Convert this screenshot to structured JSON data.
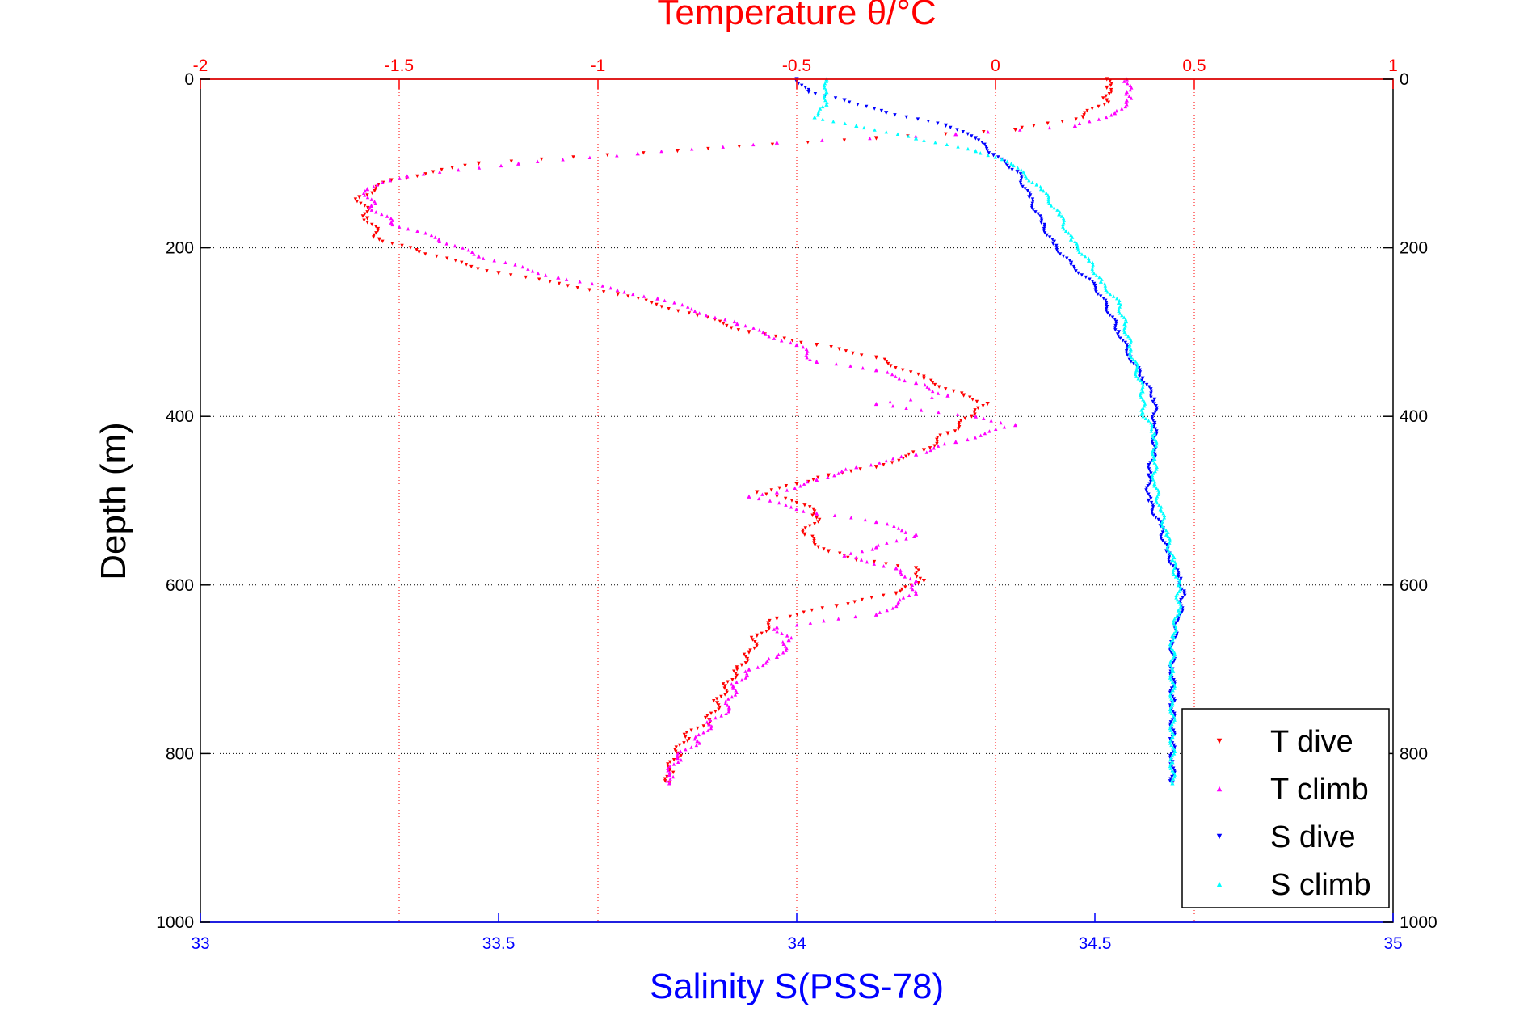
{
  "chart_data": {
    "type": "scatter",
    "title": "Temperature θ/°C",
    "xlabel": "Salinity S(PSS-78)",
    "ylabel": "Depth (m)",
    "grid": true,
    "legend_position": "bottom-right",
    "x_bottom": {
      "label": "Salinity S(PSS-78)",
      "range": [
        33,
        35
      ],
      "ticks": [
        33,
        33.5,
        34,
        34.5,
        35
      ],
      "tick_labels": [
        "33",
        "33.5",
        "34",
        "34.5",
        "35"
      ],
      "color": "#0000ff"
    },
    "x_top": {
      "label": "Temperature θ/°C",
      "range": [
        -2,
        1
      ],
      "ticks": [
        -2,
        -1.5,
        -1,
        -0.5,
        0,
        0.5,
        1
      ],
      "tick_labels": [
        "-2",
        "-1.5",
        "-1",
        "-0.5",
        "0",
        "0.5",
        "1"
      ],
      "color": "#ff0000"
    },
    "y": {
      "label": "Depth (m)",
      "range": [
        0,
        1000
      ],
      "reversed": true,
      "ticks": [
        0,
        200,
        400,
        600,
        800,
        1000
      ],
      "tick_labels": [
        "0",
        "200",
        "400",
        "600",
        "800",
        "1000"
      ]
    },
    "series": [
      {
        "name": "T dive",
        "axis": "top",
        "color": "#ff0000",
        "marker": "triangle-down",
        "points": [
          [
            0.28,
            0
          ],
          [
            0.28,
            10
          ],
          [
            0.28,
            25
          ],
          [
            0.22,
            45
          ],
          [
            0.05,
            60
          ],
          [
            -0.3,
            70
          ],
          [
            -0.8,
            85
          ],
          [
            -1.3,
            100
          ],
          [
            -1.52,
            120
          ],
          [
            -1.6,
            140
          ],
          [
            -1.58,
            165
          ],
          [
            -1.55,
            190
          ],
          [
            -1.45,
            205
          ],
          [
            -1.25,
            230
          ],
          [
            -0.95,
            255
          ],
          [
            -0.75,
            280
          ],
          [
            -0.62,
            300
          ],
          [
            -0.45,
            315
          ],
          [
            -0.3,
            330
          ],
          [
            -0.18,
            355
          ],
          [
            -0.08,
            375
          ],
          [
            -0.02,
            385
          ],
          [
            -0.06,
            400
          ],
          [
            -0.12,
            420
          ],
          [
            -0.18,
            440
          ],
          [
            -0.3,
            460
          ],
          [
            -0.42,
            470
          ],
          [
            -0.5,
            480
          ],
          [
            -0.6,
            490
          ],
          [
            -0.48,
            505
          ],
          [
            -0.45,
            520
          ],
          [
            -0.48,
            540
          ],
          [
            -0.42,
            560
          ],
          [
            -0.35,
            570
          ],
          [
            -0.2,
            580
          ],
          [
            -0.18,
            595
          ],
          [
            -0.25,
            610
          ],
          [
            -0.4,
            625
          ],
          [
            -0.55,
            640
          ],
          [
            -0.6,
            660
          ],
          [
            -0.62,
            680
          ],
          [
            -0.65,
            700
          ],
          [
            -0.68,
            720
          ],
          [
            -0.7,
            740
          ],
          [
            -0.72,
            760
          ],
          [
            -0.78,
            780
          ],
          [
            -0.8,
            800
          ],
          [
            -0.82,
            820
          ],
          [
            -0.82,
            835
          ]
        ]
      },
      {
        "name": "T climb",
        "axis": "top",
        "color": "#ff00ff",
        "marker": "triangle-up",
        "points": [
          [
            0.33,
            0
          ],
          [
            0.33,
            15
          ],
          [
            0.33,
            25
          ],
          [
            0.3,
            40
          ],
          [
            0.2,
            55
          ],
          [
            -0.1,
            65
          ],
          [
            -0.55,
            75
          ],
          [
            -0.9,
            88
          ],
          [
            -1.2,
            100
          ],
          [
            -1.48,
            115
          ],
          [
            -1.58,
            130
          ],
          [
            -1.57,
            150
          ],
          [
            -1.52,
            170
          ],
          [
            -1.4,
            190
          ],
          [
            -1.3,
            210
          ],
          [
            -1.1,
            235
          ],
          [
            -0.85,
            260
          ],
          [
            -0.65,
            290
          ],
          [
            -0.5,
            315
          ],
          [
            -0.45,
            335
          ],
          [
            -0.3,
            345
          ],
          [
            -0.2,
            360
          ],
          [
            -0.12,
            375
          ],
          [
            -0.3,
            385
          ],
          [
            -0.05,
            400
          ],
          [
            0.05,
            410
          ],
          [
            -0.1,
            430
          ],
          [
            -0.2,
            445
          ],
          [
            -0.35,
            460
          ],
          [
            -0.45,
            475
          ],
          [
            -0.55,
            490
          ],
          [
            -0.62,
            495
          ],
          [
            -0.45,
            515
          ],
          [
            -0.3,
            525
          ],
          [
            -0.2,
            540
          ],
          [
            -0.3,
            555
          ],
          [
            -0.38,
            565
          ],
          [
            -0.25,
            580
          ],
          [
            -0.2,
            595
          ],
          [
            -0.2,
            610
          ],
          [
            -0.3,
            635
          ],
          [
            -0.55,
            650
          ],
          [
            -0.52,
            665
          ],
          [
            -0.55,
            685
          ],
          [
            -0.62,
            700
          ],
          [
            -0.66,
            720
          ],
          [
            -0.67,
            745
          ],
          [
            -0.72,
            765
          ],
          [
            -0.75,
            785
          ],
          [
            -0.8,
            805
          ],
          [
            -0.82,
            825
          ],
          [
            -0.82,
            835
          ]
        ]
      },
      {
        "name": "S dive",
        "axis": "bottom",
        "color": "#0000ff",
        "marker": "triangle-down",
        "points": [
          [
            34.0,
            0
          ],
          [
            34.02,
            15
          ],
          [
            34.08,
            25
          ],
          [
            34.15,
            40
          ],
          [
            34.25,
            55
          ],
          [
            34.3,
            70
          ],
          [
            34.33,
            90
          ],
          [
            34.37,
            110
          ],
          [
            34.39,
            140
          ],
          [
            34.41,
            170
          ],
          [
            34.43,
            195
          ],
          [
            34.46,
            220
          ],
          [
            34.5,
            245
          ],
          [
            34.52,
            270
          ],
          [
            34.54,
            300
          ],
          [
            34.56,
            330
          ],
          [
            34.58,
            355
          ],
          [
            34.6,
            380
          ],
          [
            34.6,
            410
          ],
          [
            34.6,
            440
          ],
          [
            34.59,
            470
          ],
          [
            34.59,
            500
          ],
          [
            34.61,
            530
          ],
          [
            34.62,
            560
          ],
          [
            34.64,
            590
          ],
          [
            34.65,
            610
          ],
          [
            34.64,
            640
          ],
          [
            34.63,
            670
          ],
          [
            34.63,
            700
          ],
          [
            34.63,
            740
          ],
          [
            34.63,
            780
          ],
          [
            34.63,
            810
          ],
          [
            34.63,
            835
          ]
        ]
      },
      {
        "name": "S climb",
        "axis": "bottom",
        "color": "#00ffff",
        "marker": "triangle-up",
        "points": [
          [
            34.05,
            0
          ],
          [
            34.05,
            15
          ],
          [
            34.05,
            30
          ],
          [
            34.03,
            45
          ],
          [
            34.1,
            55
          ],
          [
            34.2,
            70
          ],
          [
            34.3,
            85
          ],
          [
            34.36,
            100
          ],
          [
            34.41,
            130
          ],
          [
            34.44,
            160
          ],
          [
            34.46,
            190
          ],
          [
            34.49,
            215
          ],
          [
            34.51,
            240
          ],
          [
            34.54,
            265
          ],
          [
            34.55,
            290
          ],
          [
            34.56,
            320
          ],
          [
            34.57,
            345
          ],
          [
            34.58,
            370
          ],
          [
            34.58,
            395
          ],
          [
            34.6,
            420
          ],
          [
            34.6,
            450
          ],
          [
            34.6,
            480
          ],
          [
            34.61,
            510
          ],
          [
            34.62,
            540
          ],
          [
            34.63,
            570
          ],
          [
            34.64,
            600
          ],
          [
            34.64,
            630
          ],
          [
            34.63,
            660
          ],
          [
            34.63,
            700
          ],
          [
            34.63,
            740
          ],
          [
            34.63,
            780
          ],
          [
            34.63,
            810
          ],
          [
            34.63,
            835
          ]
        ]
      }
    ]
  }
}
